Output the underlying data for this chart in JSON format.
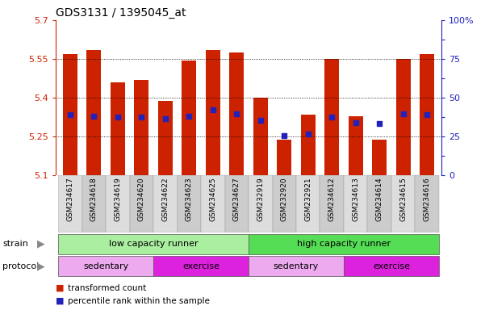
{
  "title": "GDS3131 / 1395045_at",
  "samples": [
    "GSM234617",
    "GSM234618",
    "GSM234619",
    "GSM234620",
    "GSM234622",
    "GSM234623",
    "GSM234625",
    "GSM234627",
    "GSM232919",
    "GSM232920",
    "GSM232921",
    "GSM234612",
    "GSM234613",
    "GSM234614",
    "GSM234615",
    "GSM234616"
  ],
  "bar_values": [
    5.57,
    5.585,
    5.46,
    5.47,
    5.39,
    5.545,
    5.585,
    5.575,
    5.4,
    5.24,
    5.335,
    5.55,
    5.33,
    5.24,
    5.55,
    5.57
  ],
  "blue_values": [
    5.335,
    5.33,
    5.325,
    5.325,
    5.32,
    5.33,
    5.355,
    5.34,
    5.315,
    5.255,
    5.26,
    5.325,
    5.305,
    5.3,
    5.34,
    5.335
  ],
  "ymin": 5.1,
  "ymax": 5.7,
  "yticks": [
    5.1,
    5.25,
    5.4,
    5.55,
    5.7
  ],
  "y2ticks_vals": [
    5.1,
    5.175,
    5.25,
    5.325,
    5.4,
    5.475,
    5.55,
    5.625,
    5.7
  ],
  "y2ticks_labels": [
    "0",
    "",
    "25",
    "",
    "50",
    "",
    "75",
    "",
    "100%"
  ],
  "bar_color": "#cc2200",
  "blue_color": "#2222bb",
  "strain_color_low": "#aaeea0",
  "strain_color_high": "#55dd55",
  "protocol_color_sed": "#eeaaee",
  "protocol_color_ex": "#dd22dd",
  "label_bg_even": "#dddddd",
  "label_bg_odd": "#cccccc",
  "arrow_color": "#888888"
}
